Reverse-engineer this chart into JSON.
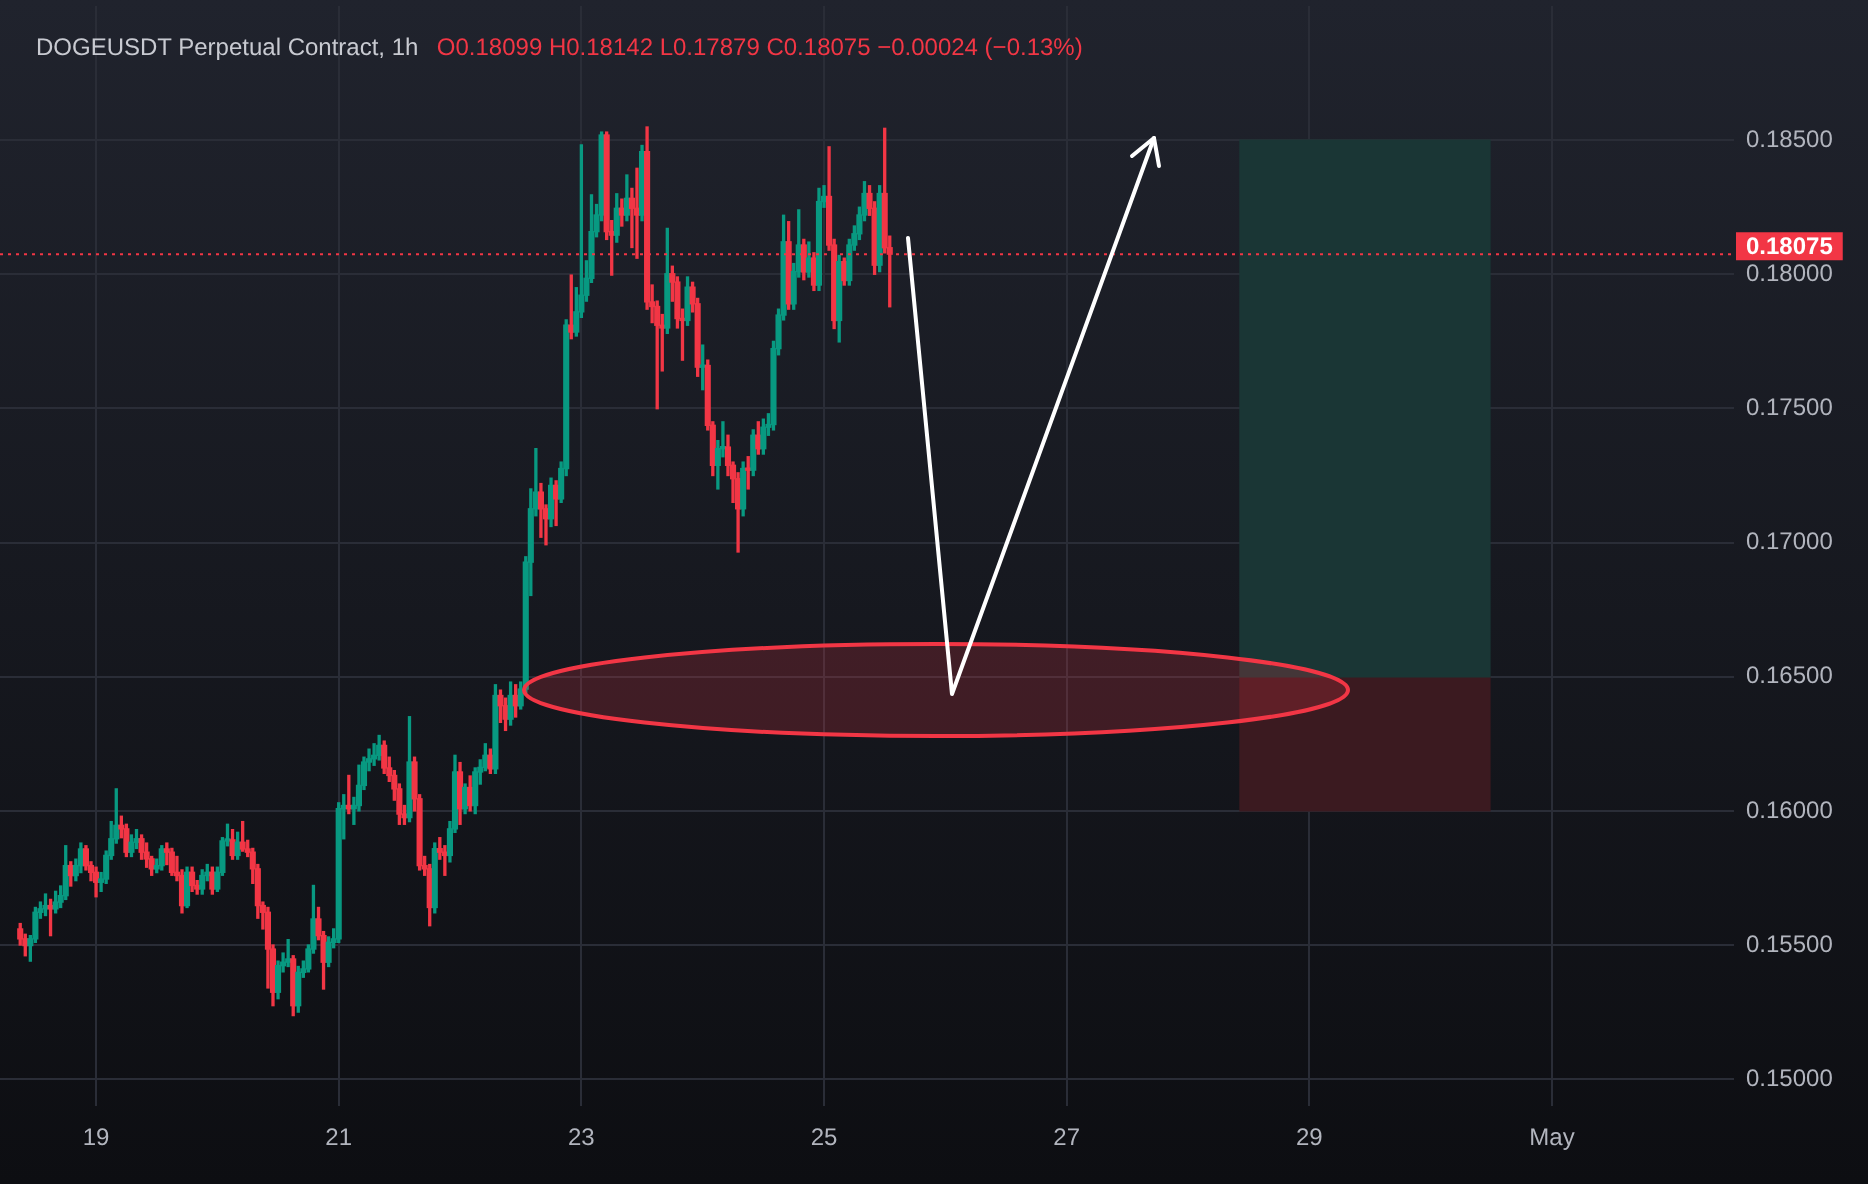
{
  "chart_data": {
    "type": "candlestick",
    "title": "DOGEUSDT Perpetual Contract, 1h",
    "subtitle": "O0.18099 H0.18142 L0.17879 C0.18075 −0.00024 (−0.13%)",
    "xlim": [
      "--04-18T05:00",
      "--05-02T12:00"
    ],
    "xticks": [
      {
        "value": "--04-19",
        "label": "19"
      },
      {
        "value": "--04-21",
        "label": "21"
      },
      {
        "value": "--04-23",
        "label": "23"
      },
      {
        "value": "--04-25",
        "label": "25"
      },
      {
        "value": "--04-27",
        "label": "27"
      },
      {
        "value": "--04-29",
        "label": "29"
      },
      {
        "value": "--05-01",
        "label": "May"
      }
    ],
    "ylim": [
      0.149,
      0.19
    ],
    "yticks": [
      {
        "value": 0.15,
        "label": "0.15000"
      },
      {
        "value": 0.155,
        "label": "0.15500"
      },
      {
        "value": 0.16,
        "label": "0.16000"
      },
      {
        "value": 0.165,
        "label": "0.16500"
      },
      {
        "value": 0.17,
        "label": "0.17000"
      },
      {
        "value": 0.175,
        "label": "0.17500"
      },
      {
        "value": 0.18,
        "label": "0.18000"
      },
      {
        "value": 0.185,
        "label": "0.18500"
      }
    ],
    "grid": true,
    "ref_lines": [
      {
        "axis": "y",
        "value": 0.18075,
        "label": "0.18075",
        "color": "#f23645",
        "line_style": "dotted"
      }
    ],
    "series": [
      {
        "x": [
          "--04-18T09:00",
          "--04-18T10:00",
          "--04-18T11:00",
          "--04-18T12:00",
          "--04-18T13:00",
          "--04-18T14:00",
          "--04-18T15:00",
          "--04-18T16:00",
          "--04-18T17:00",
          "--04-18T18:00",
          "--04-18T19:00",
          "--04-18T20:00",
          "--04-18T21:00",
          "--04-18T22:00",
          "--04-18T23:00",
          "--04-19T00:00",
          "--04-19T01:00",
          "--04-19T02:00",
          "--04-19T03:00",
          "--04-19T04:00",
          "--04-19T05:00",
          "--04-19T06:00",
          "--04-19T07:00",
          "--04-19T08:00",
          "--04-19T09:00",
          "--04-19T10:00",
          "--04-19T11:00",
          "--04-19T12:00",
          "--04-19T13:00",
          "--04-19T14:00",
          "--04-19T15:00",
          "--04-19T16:00",
          "--04-19T17:00",
          "--04-19T18:00",
          "--04-19T19:00",
          "--04-19T20:00",
          "--04-19T21:00",
          "--04-19T22:00",
          "--04-19T23:00",
          "--04-20T00:00",
          "--04-20T01:00",
          "--04-20T02:00",
          "--04-20T03:00",
          "--04-20T04:00",
          "--04-20T05:00",
          "--04-20T06:00",
          "--04-20T07:00",
          "--04-20T08:00",
          "--04-20T09:00",
          "--04-20T10:00",
          "--04-20T11:00",
          "--04-20T12:00",
          "--04-20T13:00",
          "--04-20T14:00",
          "--04-20T15:00",
          "--04-20T16:00",
          "--04-20T17:00",
          "--04-20T18:00",
          "--04-20T19:00",
          "--04-20T20:00",
          "--04-20T21:00",
          "--04-20T22:00",
          "--04-20T23:00",
          "--04-21T00:00",
          "--04-21T01:00",
          "--04-21T02:00",
          "--04-21T03:00",
          "--04-21T04:00",
          "--04-21T05:00",
          "--04-21T06:00",
          "--04-21T07:00",
          "--04-21T08:00",
          "--04-21T09:00",
          "--04-21T10:00",
          "--04-21T11:00",
          "--04-21T12:00",
          "--04-21T13:00",
          "--04-21T14:00",
          "--04-21T15:00",
          "--04-21T16:00",
          "--04-21T17:00",
          "--04-21T18:00",
          "--04-21T19:00",
          "--04-21T20:00",
          "--04-21T21:00",
          "--04-21T22:00",
          "--04-21T23:00",
          "--04-22T00:00",
          "--04-22T01:00",
          "--04-22T02:00",
          "--04-22T03:00",
          "--04-22T04:00",
          "--04-22T05:00",
          "--04-22T06:00",
          "--04-22T07:00",
          "--04-22T08:00",
          "--04-22T09:00",
          "--04-22T10:00",
          "--04-22T11:00",
          "--04-22T12:00",
          "--04-22T13:00",
          "--04-22T14:00",
          "--04-22T15:00",
          "--04-22T16:00",
          "--04-22T17:00",
          "--04-22T18:00",
          "--04-22T19:00",
          "--04-22T20:00",
          "--04-22T21:00",
          "--04-22T22:00",
          "--04-22T23:00",
          "--04-23T00:00",
          "--04-23T01:00",
          "--04-23T02:00",
          "--04-23T03:00",
          "--04-23T04:00",
          "--04-23T05:00",
          "--04-23T06:00",
          "--04-23T07:00",
          "--04-23T08:00",
          "--04-23T09:00",
          "--04-23T10:00",
          "--04-23T11:00",
          "--04-23T12:00",
          "--04-23T13:00",
          "--04-23T14:00",
          "--04-23T15:00",
          "--04-23T16:00",
          "--04-23T17:00",
          "--04-23T18:00",
          "--04-23T19:00",
          "--04-23T20:00",
          "--04-23T21:00",
          "--04-23T22:00",
          "--04-23T23:00",
          "--04-24T00:00",
          "--04-24T01:00",
          "--04-24T02:00",
          "--04-24T03:00",
          "--04-24T04:00",
          "--04-24T05:00",
          "--04-24T06:00",
          "--04-24T07:00",
          "--04-24T08:00",
          "--04-24T09:00",
          "--04-24T10:00",
          "--04-24T11:00",
          "--04-24T12:00",
          "--04-24T13:00",
          "--04-24T14:00",
          "--04-24T15:00",
          "--04-24T16:00",
          "--04-24T17:00",
          "--04-24T18:00",
          "--04-24T19:00",
          "--04-24T20:00",
          "--04-24T21:00",
          "--04-24T22:00",
          "--04-24T23:00",
          "--04-25T00:00",
          "--04-25T01:00",
          "--04-25T02:00",
          "--04-25T03:00",
          "--04-25T04:00",
          "--04-25T05:00",
          "--04-25T06:00",
          "--04-25T07:00",
          "--04-25T08:00",
          "--04-25T09:00",
          "--04-25T10:00",
          "--04-25T11:00",
          "--04-25T12:00",
          "--04-25T13:00"
        ],
        "ohlc": [
          [
            0.1556,
            0.1558,
            0.155,
            0.15523
          ],
          [
            0.15523,
            0.1554,
            0.1546,
            0.15498
          ],
          [
            0.15498,
            0.15535,
            0.1544,
            0.15523
          ],
          [
            0.15523,
            0.1564,
            0.1551,
            0.15622
          ],
          [
            0.15622,
            0.1566,
            0.156,
            0.15635
          ],
          [
            0.15635,
            0.1569,
            0.1561,
            0.15647
          ],
          [
            0.15647,
            0.1567,
            0.15535,
            0.15635
          ],
          [
            0.15635,
            0.157,
            0.1562,
            0.1566
          ],
          [
            0.1566,
            0.1572,
            0.1564,
            0.15684
          ],
          [
            0.15684,
            0.1587,
            0.1567,
            0.15796
          ],
          [
            0.15796,
            0.1581,
            0.1572,
            0.15759
          ],
          [
            0.15759,
            0.1582,
            0.1574,
            0.15796
          ],
          [
            0.15796,
            0.1588,
            0.1577,
            0.15858
          ],
          [
            0.15858,
            0.1587,
            0.1578,
            0.15796
          ],
          [
            0.15796,
            0.1581,
            0.1574,
            0.15771
          ],
          [
            0.15771,
            0.1579,
            0.1568,
            0.15734
          ],
          [
            0.15734,
            0.1577,
            0.157,
            0.15746
          ],
          [
            0.15746,
            0.1585,
            0.1573,
            0.15834
          ],
          [
            0.15834,
            0.1596,
            0.1582,
            0.15896
          ],
          [
            0.15896,
            0.16082,
            0.1588,
            0.15946
          ],
          [
            0.15946,
            0.1598,
            0.159,
            0.15933
          ],
          [
            0.15933,
            0.1595,
            0.1583,
            0.15846
          ],
          [
            0.15846,
            0.1591,
            0.1583,
            0.15883
          ],
          [
            0.15883,
            0.1593,
            0.1586,
            0.15896
          ],
          [
            0.15896,
            0.1591,
            0.1582,
            0.15846
          ],
          [
            0.15846,
            0.1588,
            0.1579,
            0.15821
          ],
          [
            0.15821,
            0.1583,
            0.1576,
            0.15784
          ],
          [
            0.15784,
            0.1582,
            0.1577,
            0.15796
          ],
          [
            0.15796,
            0.1587,
            0.1578,
            0.15858
          ],
          [
            0.15858,
            0.1588,
            0.158,
            0.15846
          ],
          [
            0.15846,
            0.1586,
            0.1576,
            0.15771
          ],
          [
            0.15771,
            0.1583,
            0.1574,
            0.15759
          ],
          [
            0.15759,
            0.1578,
            0.1562,
            0.15647
          ],
          [
            0.15647,
            0.1579,
            0.1564,
            0.15771
          ],
          [
            0.15771,
            0.1579,
            0.157,
            0.15722
          ],
          [
            0.15722,
            0.1574,
            0.1569,
            0.15709
          ],
          [
            0.15709,
            0.1578,
            0.1569,
            0.15759
          ],
          [
            0.15759,
            0.158,
            0.1574,
            0.15771
          ],
          [
            0.15771,
            0.1579,
            0.1569,
            0.15709
          ],
          [
            0.15709,
            0.1579,
            0.157,
            0.15771
          ],
          [
            0.15771,
            0.159,
            0.1576,
            0.15888
          ],
          [
            0.15888,
            0.1595,
            0.1587,
            0.15892
          ],
          [
            0.15892,
            0.1593,
            0.1582,
            0.15834
          ],
          [
            0.15834,
            0.1592,
            0.1582,
            0.15883
          ],
          [
            0.15883,
            0.1596,
            0.1585,
            0.15858
          ],
          [
            0.15858,
            0.1589,
            0.1583,
            0.15846
          ],
          [
            0.15846,
            0.1586,
            0.1573,
            0.15784
          ],
          [
            0.15784,
            0.158,
            0.156,
            0.15647
          ],
          [
            0.15647,
            0.1566,
            0.1556,
            0.15622
          ],
          [
            0.15622,
            0.1564,
            0.1534,
            0.15485
          ],
          [
            0.15485,
            0.155,
            0.15274,
            0.15324
          ],
          [
            0.15324,
            0.1544,
            0.153,
            0.15423
          ],
          [
            0.15423,
            0.1547,
            0.154,
            0.15436
          ],
          [
            0.15436,
            0.1552,
            0.1542,
            0.15448
          ],
          [
            0.15448,
            0.1546,
            0.15237,
            0.15274
          ],
          [
            0.15274,
            0.1542,
            0.1525,
            0.15398
          ],
          [
            0.15398,
            0.1544,
            0.1538,
            0.15411
          ],
          [
            0.15411,
            0.155,
            0.154,
            0.15485
          ],
          [
            0.15485,
            0.15722,
            0.1547,
            0.15597
          ],
          [
            0.15597,
            0.1564,
            0.1552,
            0.15535
          ],
          [
            0.15535,
            0.1555,
            0.15336,
            0.15436
          ],
          [
            0.15436,
            0.1553,
            0.1542,
            0.1551
          ],
          [
            0.1551,
            0.1556,
            0.1549,
            0.15523
          ],
          [
            0.15523,
            0.1603,
            0.1551,
            0.16008
          ],
          [
            0.16008,
            0.1606,
            0.15896,
            0.1602
          ],
          [
            0.1602,
            0.16132,
            0.1599,
            0.16008
          ],
          [
            0.16008,
            0.1605,
            0.1595,
            0.1602
          ],
          [
            0.1602,
            0.1617,
            0.16,
            0.16095
          ],
          [
            0.16095,
            0.162,
            0.1608,
            0.16182
          ],
          [
            0.16182,
            0.1623,
            0.1615,
            0.16194
          ],
          [
            0.16194,
            0.1625,
            0.1617,
            0.16207
          ],
          [
            0.16207,
            0.16281,
            0.1619,
            0.16244
          ],
          [
            0.16244,
            0.1626,
            0.1614,
            0.1616
          ],
          [
            0.1616,
            0.162,
            0.1611,
            0.16132
          ],
          [
            0.16132,
            0.1615,
            0.1604,
            0.16082
          ],
          [
            0.16082,
            0.161,
            0.1595,
            0.15988
          ],
          [
            0.15988,
            0.1602,
            0.1595,
            0.15975
          ],
          [
            0.15975,
            0.16351,
            0.1596,
            0.16182
          ],
          [
            0.16182,
            0.162,
            0.16,
            0.16045
          ],
          [
            0.16045,
            0.1606,
            0.1578,
            0.15796
          ],
          [
            0.15796,
            0.1583,
            0.1576,
            0.15784
          ],
          [
            0.15784,
            0.158,
            0.15572,
            0.1564
          ],
          [
            0.1564,
            0.1588,
            0.1562,
            0.15859
          ],
          [
            0.15859,
            0.159,
            0.1582,
            0.15846
          ],
          [
            0.15846,
            0.1587,
            0.1576,
            0.15834
          ],
          [
            0.15834,
            0.1596,
            0.1581,
            0.15933
          ],
          [
            0.15933,
            0.16207,
            0.1592,
            0.16145
          ],
          [
            0.16145,
            0.1618,
            0.1595,
            0.16008
          ],
          [
            0.16008,
            0.161,
            0.1599,
            0.16087
          ],
          [
            0.16087,
            0.1613,
            0.16,
            0.1602
          ],
          [
            0.1602,
            0.1616,
            0.1599,
            0.16145
          ],
          [
            0.16145,
            0.1619,
            0.161,
            0.16162
          ],
          [
            0.16162,
            0.1625,
            0.1615,
            0.16207
          ],
          [
            0.16207,
            0.1623,
            0.1614,
            0.16157
          ],
          [
            0.16157,
            0.1647,
            0.1614,
            0.1643
          ],
          [
            0.1643,
            0.1645,
            0.1633,
            0.16392
          ],
          [
            0.16392,
            0.1642,
            0.163,
            0.16342
          ],
          [
            0.16342,
            0.1648,
            0.1632,
            0.1643
          ],
          [
            0.1643,
            0.1647,
            0.1635,
            0.16392
          ],
          [
            0.16392,
            0.1648,
            0.1638,
            0.16454
          ],
          [
            0.16454,
            0.16947,
            0.1644,
            0.16927
          ],
          [
            0.16927,
            0.172,
            0.16803,
            0.17126
          ],
          [
            0.17126,
            0.1735,
            0.171,
            0.17188
          ],
          [
            0.17188,
            0.1722,
            0.1702,
            0.17126
          ],
          [
            0.17126,
            0.1714,
            0.16992,
            0.17089
          ],
          [
            0.17089,
            0.1724,
            0.1706,
            0.17213
          ],
          [
            0.17213,
            0.1723,
            0.17064,
            0.17163
          ],
          [
            0.17163,
            0.173,
            0.1715,
            0.17276
          ],
          [
            0.17276,
            0.1783,
            0.1725,
            0.1781
          ],
          [
            0.1781,
            0.17997,
            0.1776,
            0.17785
          ],
          [
            0.17785,
            0.1795,
            0.1777,
            0.1786
          ],
          [
            0.1786,
            0.18482,
            0.1784,
            0.17922
          ],
          [
            0.17922,
            0.1805,
            0.179,
            0.17985
          ],
          [
            0.17985,
            0.18296,
            0.1797,
            0.18159
          ],
          [
            0.18159,
            0.1826,
            0.1814,
            0.18221
          ],
          [
            0.18221,
            0.1853,
            0.182,
            0.18519
          ],
          [
            0.18519,
            0.1853,
            0.1813,
            0.18159
          ],
          [
            0.18159,
            0.182,
            0.17997,
            0.18146
          ],
          [
            0.18146,
            0.183,
            0.1812,
            0.18246
          ],
          [
            0.18246,
            0.1828,
            0.1818,
            0.18221
          ],
          [
            0.18221,
            0.1837,
            0.182,
            0.18283
          ],
          [
            0.18283,
            0.1832,
            0.181,
            0.18246
          ],
          [
            0.18246,
            0.18395,
            0.1806,
            0.18221
          ],
          [
            0.18221,
            0.1848,
            0.182,
            0.18457
          ],
          [
            0.18457,
            0.18549,
            0.1787,
            0.17897
          ],
          [
            0.17897,
            0.1796,
            0.1782,
            0.1788
          ],
          [
            0.1788,
            0.179,
            0.17499,
            0.1781
          ],
          [
            0.1781,
            0.1785,
            0.1764,
            0.178
          ],
          [
            0.178,
            0.18171,
            0.1778,
            0.18002
          ],
          [
            0.18002,
            0.1803,
            0.179,
            0.17971
          ],
          [
            0.17971,
            0.1799,
            0.178,
            0.17835
          ],
          [
            0.17835,
            0.1787,
            0.1768,
            0.17828
          ],
          [
            0.17828,
            0.1799,
            0.1781,
            0.17952
          ],
          [
            0.17952,
            0.1797,
            0.1786,
            0.1789
          ],
          [
            0.1789,
            0.1791,
            0.1762,
            0.17654
          ],
          [
            0.17654,
            0.17736,
            0.1757,
            0.1766
          ],
          [
            0.1766,
            0.1768,
            0.1742,
            0.17437
          ],
          [
            0.17437,
            0.1745,
            0.1725,
            0.17288
          ],
          [
            0.17288,
            0.1738,
            0.172,
            0.1735
          ],
          [
            0.1735,
            0.1745,
            0.1732,
            0.17356
          ],
          [
            0.17356,
            0.174,
            0.1725,
            0.17288
          ],
          [
            0.17288,
            0.173,
            0.1715,
            0.17238
          ],
          [
            0.17238,
            0.1726,
            0.16965,
            0.17126
          ],
          [
            0.17126,
            0.173,
            0.171,
            0.17276
          ],
          [
            0.17276,
            0.1732,
            0.172,
            0.1727
          ],
          [
            0.1727,
            0.1742,
            0.1725,
            0.174
          ],
          [
            0.174,
            0.1745,
            0.1733,
            0.1735
          ],
          [
            0.1735,
            0.1746,
            0.1733,
            0.1743
          ],
          [
            0.1743,
            0.1748,
            0.174,
            0.1744
          ],
          [
            0.1744,
            0.1775,
            0.1742,
            0.17723
          ],
          [
            0.17723,
            0.1787,
            0.177,
            0.17848
          ],
          [
            0.17848,
            0.1822,
            0.1783,
            0.18121
          ],
          [
            0.18121,
            0.18196,
            0.1787,
            0.1789
          ],
          [
            0.1789,
            0.1804,
            0.1787,
            0.1801
          ],
          [
            0.1801,
            0.1824,
            0.1799,
            0.18109
          ],
          [
            0.18109,
            0.1813,
            0.1798,
            0.18009
          ],
          [
            0.18009,
            0.1812,
            0.1799,
            0.1806
          ],
          [
            0.1806,
            0.1808,
            0.1794,
            0.1796
          ],
          [
            0.1796,
            0.1832,
            0.1794,
            0.18271
          ],
          [
            0.18271,
            0.1833,
            0.1825,
            0.1829
          ],
          [
            0.1829,
            0.18475,
            0.1809,
            0.18109
          ],
          [
            0.18109,
            0.1813,
            0.17798,
            0.17828
          ],
          [
            0.17828,
            0.1807,
            0.17748,
            0.18047
          ],
          [
            0.18047,
            0.1806,
            0.1796,
            0.17977
          ],
          [
            0.17977,
            0.1813,
            0.1796,
            0.18109
          ],
          [
            0.18109,
            0.1818,
            0.1809,
            0.18151
          ],
          [
            0.18151,
            0.1825,
            0.1813,
            0.18221
          ],
          [
            0.18221,
            0.18345,
            0.182,
            0.18301
          ],
          [
            0.18301,
            0.1833,
            0.1822,
            0.18246
          ],
          [
            0.18246,
            0.1827,
            0.18,
            0.18034
          ],
          [
            0.18034,
            0.1833,
            0.1801,
            0.18301
          ],
          [
            0.18301,
            0.18544,
            0.1808,
            0.18099
          ],
          [
            0.18099,
            0.18142,
            0.17879,
            0.18075
          ]
        ],
        "colors": [
          "#f23645",
          "#f23645",
          "#089981",
          "#089981",
          "#089981",
          "#089981",
          "#f23645",
          "#089981",
          "#089981",
          "#089981",
          "#f23645",
          "#089981",
          "#089981",
          "#f23645",
          "#f23645",
          "#f23645",
          "#089981",
          "#089981",
          "#089981",
          "#089981",
          "#f23645",
          "#f23645",
          "#089981",
          "#089981",
          "#f23645",
          "#f23645",
          "#f23645",
          "#089981",
          "#089981",
          "#f23645",
          "#f23645",
          "#f23645",
          "#f23645",
          "#089981",
          "#f23645",
          "#f23645",
          "#089981",
          "#089981",
          "#f23645",
          "#089981",
          "#089981",
          "#089981",
          "#f23645",
          "#089981",
          "#f23645",
          "#f23645",
          "#f23645",
          "#f23645",
          "#f23645",
          "#f23645",
          "#f23645",
          "#089981",
          "#089981",
          "#089981",
          "#f23645",
          "#089981",
          "#089981",
          "#089981",
          "#089981",
          "#f23645",
          "#f23645",
          "#089981",
          "#089981",
          "#089981",
          "#089981",
          "#f23645",
          "#089981",
          "#089981",
          "#089981",
          "#089981",
          "#089981",
          "#089981",
          "#f23645",
          "#f23645",
          "#f23645",
          "#f23645",
          "#f23645",
          "#089981",
          "#f23645",
          "#f23645",
          "#f23645",
          "#f23645",
          "#089981",
          "#f23645",
          "#f23645",
          "#089981",
          "#089981",
          "#f23645",
          "#089981",
          "#f23645",
          "#089981",
          "#089981",
          "#089981",
          "#f23645",
          "#089981",
          "#f23645",
          "#f23645",
          "#089981",
          "#f23645",
          "#089981",
          "#089981",
          "#089981",
          "#089981",
          "#f23645",
          "#f23645",
          "#089981",
          "#f23645",
          "#089981",
          "#089981",
          "#f23645",
          "#089981",
          "#089981",
          "#089981",
          "#089981",
          "#089981",
          "#089981",
          "#f23645",
          "#f23645",
          "#089981",
          "#f23645",
          "#089981",
          "#f23645",
          "#f23645",
          "#089981",
          "#f23645",
          "#f23645",
          "#f23645",
          "#f23645",
          "#089981",
          "#f23645",
          "#f23645",
          "#f23645",
          "#089981",
          "#f23645",
          "#f23645",
          "#089981",
          "#f23645",
          "#f23645",
          "#089981",
          "#089981",
          "#f23645",
          "#f23645",
          "#f23645",
          "#089981",
          "#f23645",
          "#089981",
          "#f23645",
          "#089981",
          "#089981",
          "#089981",
          "#089981",
          "#089981",
          "#f23645",
          "#089981",
          "#089981",
          "#f23645",
          "#089981",
          "#f23645",
          "#089981",
          "#089981",
          "#f23645",
          "#f23645",
          "#089981",
          "#f23645",
          "#089981",
          "#089981",
          "#089981",
          "#089981",
          "#f23645",
          "#f23645",
          "#089981",
          "#f23645",
          "#f23645"
        ]
      },
      {
        "type": "bar",
        "x": [
          "--04-29T11:00"
        ],
        "base": [
          0.165
        ],
        "values": [
          0.02
        ],
        "color": "#1a3635"
      },
      {
        "type": "bar",
        "x": [
          "--04-29T11:00"
        ],
        "base": [
          0.16
        ],
        "values": [
          0.005
        ],
        "color": "#3b1a20"
      }
    ]
  }
}
